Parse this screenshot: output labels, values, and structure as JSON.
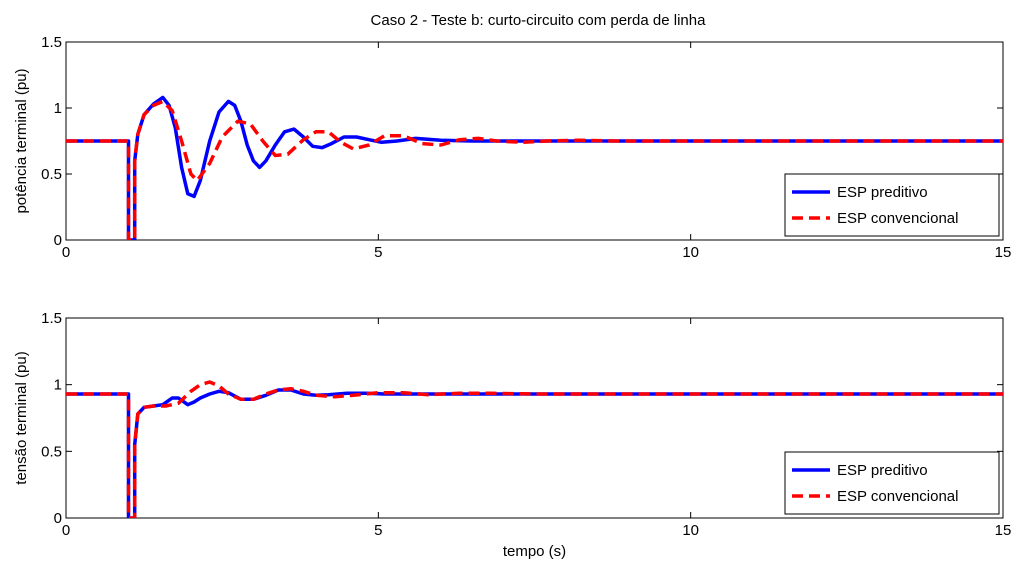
{
  "figure": {
    "title": "Caso 2 - Teste b: curto-circuito com perda de linha"
  },
  "chart_data": [
    {
      "type": "line",
      "title": "Caso 2 - Teste b: curto-circuito com perda de linha",
      "xlabel": "",
      "ylabel": "potência terminal (pu)",
      "xlim": [
        0,
        15
      ],
      "ylim": [
        0,
        1.5
      ],
      "xticks": [
        "0",
        "5",
        "10",
        "15"
      ],
      "yticks": [
        "0",
        "0.5",
        "1",
        "1.5"
      ],
      "grid": false,
      "legend_position": "bottom-right",
      "series": [
        {
          "name": "ESP preditivo",
          "color": "#0000ff",
          "style": "solid",
          "x": [
            0,
            0.99,
            1.0,
            1.0,
            1.1,
            1.1,
            1.15,
            1.25,
            1.4,
            1.55,
            1.65,
            1.75,
            1.85,
            1.95,
            2.05,
            2.15,
            2.3,
            2.45,
            2.6,
            2.7,
            2.8,
            2.9,
            3.0,
            3.1,
            3.2,
            3.35,
            3.5,
            3.65,
            3.8,
            3.95,
            4.1,
            4.25,
            4.45,
            4.65,
            4.85,
            5.05,
            5.3,
            5.6,
            6.0,
            6.5,
            7.0,
            15.0
          ],
          "y": [
            0.75,
            0.75,
            0.75,
            0.0,
            0.0,
            0.6,
            0.8,
            0.95,
            1.03,
            1.08,
            1.02,
            0.85,
            0.55,
            0.35,
            0.33,
            0.45,
            0.75,
            0.97,
            1.05,
            1.02,
            0.9,
            0.72,
            0.6,
            0.55,
            0.6,
            0.72,
            0.82,
            0.84,
            0.78,
            0.71,
            0.7,
            0.73,
            0.78,
            0.78,
            0.76,
            0.74,
            0.75,
            0.77,
            0.755,
            0.75,
            0.75,
            0.75
          ]
        },
        {
          "name": "ESP convencional",
          "color": "#ff0000",
          "style": "dashed",
          "x": [
            0,
            0.99,
            1.0,
            1.0,
            1.1,
            1.1,
            1.15,
            1.25,
            1.4,
            1.55,
            1.7,
            1.85,
            2.0,
            2.1,
            2.3,
            2.5,
            2.75,
            2.95,
            3.15,
            3.35,
            3.55,
            3.8,
            4.0,
            4.2,
            4.4,
            4.6,
            4.85,
            5.1,
            5.4,
            5.7,
            6.0,
            6.3,
            6.6,
            6.9,
            7.3,
            7.7,
            8.2,
            8.8,
            9.5,
            15.0
          ],
          "y": [
            0.75,
            0.75,
            0.75,
            0.0,
            0.0,
            0.6,
            0.8,
            0.95,
            1.02,
            1.05,
            0.98,
            0.75,
            0.5,
            0.45,
            0.58,
            0.78,
            0.9,
            0.88,
            0.75,
            0.64,
            0.65,
            0.76,
            0.82,
            0.82,
            0.74,
            0.69,
            0.72,
            0.79,
            0.79,
            0.73,
            0.72,
            0.76,
            0.77,
            0.75,
            0.74,
            0.75,
            0.755,
            0.75,
            0.75,
            0.75
          ]
        }
      ]
    },
    {
      "type": "line",
      "title": "",
      "xlabel": "tempo (s)",
      "ylabel": "tensão terminal (pu)",
      "xlim": [
        0,
        15
      ],
      "ylim": [
        0,
        1.5
      ],
      "xticks": [
        "0",
        "5",
        "10",
        "15"
      ],
      "yticks": [
        "0",
        "0.5",
        "1",
        "1.5"
      ],
      "grid": false,
      "legend_position": "bottom-right",
      "series": [
        {
          "name": "ESP preditivo",
          "color": "#0000ff",
          "style": "solid",
          "x": [
            0,
            0.99,
            1.0,
            1.0,
            1.1,
            1.1,
            1.15,
            1.25,
            1.4,
            1.55,
            1.7,
            1.8,
            1.95,
            2.05,
            2.15,
            2.3,
            2.45,
            2.6,
            2.8,
            3.0,
            3.2,
            3.4,
            3.6,
            3.8,
            4.0,
            4.2,
            4.5,
            4.8,
            5.1,
            5.5,
            6.0,
            15.0
          ],
          "y": [
            0.93,
            0.93,
            0.93,
            0.0,
            0.0,
            0.55,
            0.78,
            0.83,
            0.84,
            0.85,
            0.9,
            0.9,
            0.85,
            0.87,
            0.9,
            0.93,
            0.95,
            0.94,
            0.89,
            0.89,
            0.92,
            0.96,
            0.96,
            0.93,
            0.92,
            0.925,
            0.935,
            0.935,
            0.93,
            0.93,
            0.93,
            0.93
          ]
        },
        {
          "name": "ESP convencional",
          "color": "#ff0000",
          "style": "dashed",
          "x": [
            0,
            0.99,
            1.0,
            1.0,
            1.1,
            1.1,
            1.15,
            1.25,
            1.4,
            1.6,
            1.8,
            2.0,
            2.15,
            2.3,
            2.45,
            2.6,
            2.8,
            3.0,
            3.2,
            3.4,
            3.6,
            3.8,
            4.0,
            4.3,
            4.6,
            5.0,
            5.4,
            5.8,
            6.3,
            6.8,
            7.5,
            15.0
          ],
          "y": [
            0.93,
            0.93,
            0.93,
            0.0,
            0.0,
            0.55,
            0.78,
            0.83,
            0.84,
            0.84,
            0.86,
            0.95,
            1.0,
            1.02,
            0.99,
            0.93,
            0.89,
            0.89,
            0.93,
            0.96,
            0.97,
            0.95,
            0.92,
            0.91,
            0.92,
            0.94,
            0.94,
            0.925,
            0.935,
            0.935,
            0.93,
            0.93
          ]
        }
      ]
    }
  ]
}
